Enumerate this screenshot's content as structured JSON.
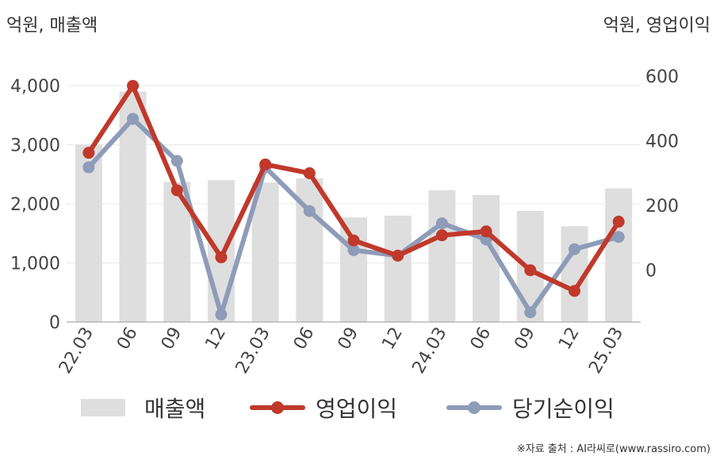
{
  "chart_data": {
    "type": "bar+line",
    "y_left_label": "억원, 매출액",
    "y_right_label": "억원, 영업이익",
    "categories": [
      "22.03",
      "06",
      "09",
      "12",
      "23.03",
      "06",
      "09",
      "12",
      "24.03",
      "06",
      "09",
      "12",
      "25.03"
    ],
    "y_left_ticks": [
      "0",
      "1,000",
      "2,000",
      "3,000",
      "4,000"
    ],
    "y_right_ticks": [
      "0",
      "200",
      "400",
      "600"
    ],
    "ylim_left": [
      0,
      4000
    ],
    "ylim_right": [
      -160,
      600
    ],
    "grid": true,
    "legend_position": "bottom",
    "series": [
      {
        "name": "매출액",
        "kind": "bar",
        "axis": "left",
        "color": "#dedede",
        "values": [
          3000,
          3900,
          2370,
          2400,
          2360,
          2430,
          1770,
          1800,
          2230,
          2150,
          1880,
          1620,
          2260
        ]
      },
      {
        "name": "영업이익",
        "kind": "line",
        "axis": "right",
        "color": "#c0392b",
        "values": [
          363,
          570,
          247,
          40,
          327,
          300,
          92,
          45,
          108,
          120,
          0,
          -64,
          150
        ]
      },
      {
        "name": "당기순이익",
        "kind": "line",
        "axis": "right",
        "color": "#8e9cb8",
        "values": [
          318,
          468,
          338,
          -137,
          318,
          183,
          62,
          45,
          145,
          95,
          -130,
          65,
          103
        ]
      }
    ]
  },
  "source": "※자료 출처 : AI라씨로(www.rassiro.com)"
}
